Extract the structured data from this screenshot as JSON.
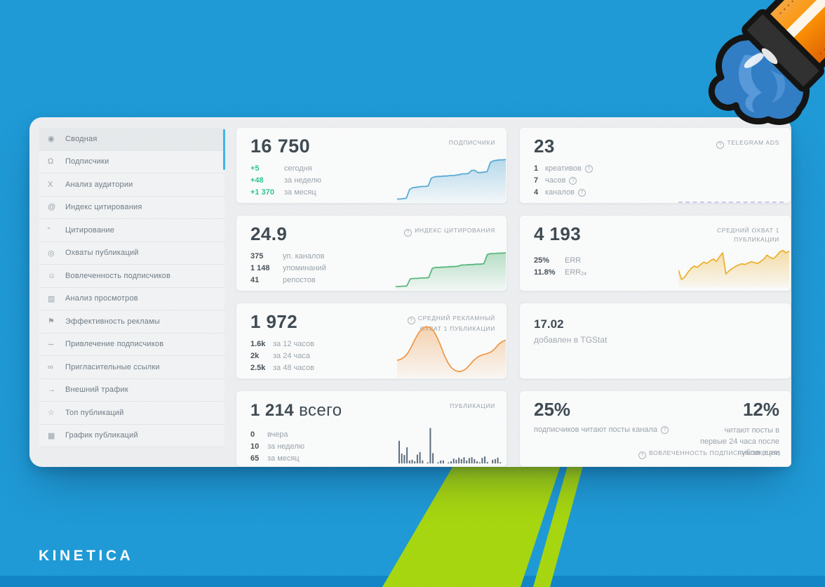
{
  "brand": {
    "logo_text": "KINETICA"
  },
  "colors": {
    "background": "#1b99d7",
    "bottom_strip": "#0d84c6",
    "stripe_green": "#a6d70c",
    "panel_bg": "#edeff1",
    "tile_bg": "#fbfcfc",
    "scrollbar_accent": "#38b6e9",
    "positive_green": "#2bc48b",
    "number_dark": "#3c4850",
    "muted_gray": "#9aa4ac"
  },
  "icons": {
    "info": "?",
    "summary-icon": "◉",
    "subscribers-icon": "Ω",
    "audience-icon": "X",
    "citation-index-icon": "@",
    "citation-icon": "“",
    "reach-icon": "◎",
    "engagement-icon": "☺",
    "views-icon": "▥",
    "ads-icon": "⚑",
    "acquisition-icon": "∼",
    "invite-links-icon": "∞",
    "external-traffic-icon": "→",
    "top-posts-icon": "☆",
    "schedule-icon": "▦"
  },
  "sidebar": {
    "items": [
      {
        "icon": "summary-icon",
        "label": "Сводная",
        "active": true
      },
      {
        "icon": "subscribers-icon",
        "label": "Подписчики"
      },
      {
        "icon": "audience-icon",
        "label": "Анализ аудитории"
      },
      {
        "icon": "citation-index-icon",
        "label": "Индекс цитирования"
      },
      {
        "icon": "citation-icon",
        "label": "Цитирование"
      },
      {
        "icon": "reach-icon",
        "label": "Охваты публикаций"
      },
      {
        "icon": "engagement-icon",
        "label": "Вовлеченность подписчиков"
      },
      {
        "icon": "views-icon",
        "label": "Анализ просмотров"
      },
      {
        "icon": "ads-icon",
        "label": "Эффективность рекламы"
      },
      {
        "icon": "acquisition-icon",
        "label": "Привлечение подписчиков"
      },
      {
        "icon": "invite-links-icon",
        "label": "Пригласительные ссылки"
      },
      {
        "icon": "external-traffic-icon",
        "label": "Внешний трафик"
      },
      {
        "icon": "top-posts-icon",
        "label": "Топ публикаций"
      },
      {
        "icon": "schedule-icon",
        "label": "График публикаций"
      }
    ]
  },
  "cards": {
    "subscribers": {
      "value": "16 750",
      "title": "ПОДПИСЧИКИ",
      "title_info": false,
      "stats": [
        {
          "value": "+5",
          "label": "сегодня"
        },
        {
          "value": "+48",
          "label": "за неделю"
        },
        {
          "value": "+1 370",
          "label": "за месяц"
        }
      ]
    },
    "telegram_ads": {
      "value": "23",
      "title": "TELEGRAM ADS",
      "title_info": true,
      "stats": [
        {
          "value": "1",
          "label": "креативов",
          "info": true
        },
        {
          "value": "7",
          "label": "часов",
          "info": true
        },
        {
          "value": "4",
          "label": "каналов",
          "info": true
        }
      ]
    },
    "citation_index": {
      "value": "24.9",
      "title": "ИНДЕКС ЦИТИРОВАНИЯ",
      "title_info": true,
      "stats": [
        {
          "value": "375",
          "label": "уп. каналов"
        },
        {
          "value": "1 148",
          "label": "упоминаний"
        },
        {
          "value": "41",
          "label": "репостов"
        }
      ]
    },
    "avg_reach": {
      "value": "4 193",
      "title": "СРЕДНИЙ ОХВАТ 1 ПУБЛИКАЦИИ",
      "title_info": false,
      "stats": [
        {
          "value": "25%",
          "label": "ERR"
        },
        {
          "value": "11.8%",
          "label": "ERR",
          "sub": "24"
        }
      ]
    },
    "avg_ad_reach": {
      "value": "1 972",
      "title": "СРЕДНИЙ РЕКЛАМНЫЙ ОХВАТ 1 ПУБЛИКАЦИИ",
      "title_info": true,
      "stats": [
        {
          "value": "1.6k",
          "label": "за 12 часов"
        },
        {
          "value": "2k",
          "label": "за 24 часа"
        },
        {
          "value": "2.5k",
          "label": "за 48 часов"
        }
      ]
    },
    "added_date": {
      "value": "17.02",
      "label": "добавлен в TGStat"
    },
    "publications": {
      "value": "1 214",
      "suffix": "всего",
      "title": "ПУБЛИКАЦИИ",
      "title_info": false,
      "stats": [
        {
          "value": "0",
          "label": "вчера"
        },
        {
          "value": "10",
          "label": "за неделю"
        },
        {
          "value": "65",
          "label": "за месяц"
        }
      ]
    },
    "engagement": {
      "left_value": "25%",
      "left_label": "подписчиков читают посты канала",
      "left_info": true,
      "right_value": "12%",
      "right_label": "читают посты в первые 24 часа после публикации",
      "footer": "ВОВЛЕЧЕННОСТЬ ПОДПИСЧИКОВ (ERR)",
      "footer_info": true
    }
  },
  "chart_data": [
    {
      "name": "subscribers-trend",
      "type": "area",
      "color": "#58abd7",
      "values": [
        4,
        4,
        5,
        6,
        26,
        30,
        31,
        32,
        33,
        33,
        34,
        52,
        55,
        56,
        56,
        57,
        57,
        58,
        58,
        59,
        60,
        62,
        62,
        63,
        70,
        70,
        65,
        65,
        66,
        67,
        88,
        92,
        93,
        94,
        94,
        95
      ]
    },
    {
      "name": "citation-index-trend",
      "type": "area",
      "color": "#57b77c",
      "values": [
        5,
        5,
        6,
        6,
        24,
        25,
        25,
        26,
        26,
        27,
        50,
        52,
        52,
        53,
        53,
        54,
        54,
        55,
        58,
        58,
        59,
        59,
        60,
        60,
        61,
        84,
        86,
        86,
        87,
        87,
        88
      ]
    },
    {
      "name": "avg-reach-trend",
      "type": "area",
      "color": "#eeb22f",
      "values": [
        40,
        16,
        22,
        34,
        44,
        50,
        47,
        54,
        60,
        57,
        63,
        68,
        62,
        74,
        84,
        30,
        38,
        44,
        49,
        53,
        56,
        54,
        58,
        61,
        59,
        57,
        62,
        68,
        78,
        72,
        69,
        76,
        86,
        90,
        84,
        88
      ]
    },
    {
      "name": "avg-ad-reach-trend",
      "type": "area",
      "color": "#f09a47",
      "values": [
        30,
        32,
        36,
        44,
        56,
        70,
        82,
        90,
        93,
        92,
        86,
        74,
        58,
        40,
        26,
        16,
        11,
        9,
        10,
        14,
        21,
        29,
        35,
        39,
        41,
        43,
        46,
        52,
        60,
        65,
        68
      ]
    },
    {
      "name": "publications-histogram",
      "type": "bar",
      "color": "#5b6c7c",
      "values": [
        62,
        27,
        23,
        44,
        8,
        10,
        6,
        24,
        31,
        8,
        0,
        2,
        97,
        28,
        0,
        3,
        8,
        8,
        0,
        2,
        6,
        13,
        10,
        16,
        12,
        17,
        8,
        15,
        17,
        12,
        6,
        3,
        15,
        19,
        4,
        0,
        10,
        12,
        16,
        3
      ]
    }
  ]
}
